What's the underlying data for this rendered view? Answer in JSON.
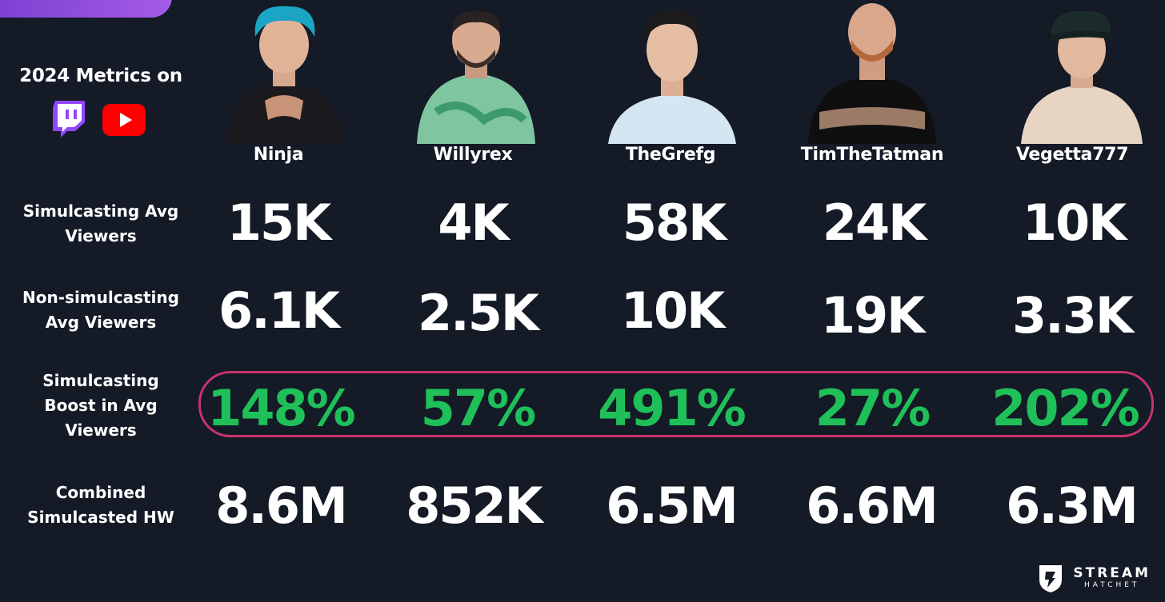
{
  "header": {
    "title": "2024 Metrics on",
    "platforms": [
      {
        "name": "twitch-icon",
        "color": "#9146ff"
      },
      {
        "name": "youtube-icon",
        "color": "#ff0000"
      }
    ]
  },
  "streamers": [
    "Ninja",
    "Willyrex",
    "TheGrefg",
    "TimTheTatman",
    "Vegetta777"
  ],
  "row_labels": {
    "simulcasting_avg": [
      "Simulcasting Avg",
      "Viewers"
    ],
    "non_simulcasting_avg": [
      "Non-simulcasting",
      "Avg Viewers"
    ],
    "boost": [
      "Simulcasting",
      "Boost in Avg",
      "Viewers"
    ],
    "combined_hw": [
      "Combined",
      "Simulcasted HW"
    ]
  },
  "chart_data": {
    "type": "table",
    "columns": [
      "Ninja",
      "Willyrex",
      "TheGrefg",
      "TimTheTatman",
      "Vegetta777"
    ],
    "rows": [
      {
        "label": "Simulcasting Avg Viewers",
        "values": [
          "15K",
          "4K",
          "58K",
          "24K",
          "10K"
        ]
      },
      {
        "label": "Non-simulcasting Avg Viewers",
        "values": [
          "6.1K",
          "2.5K",
          "10K",
          "19K",
          "3.3K"
        ]
      },
      {
        "label": "Simulcasting Boost in Avg Viewers",
        "values": [
          "148%",
          "57%",
          "491%",
          "27%",
          "202%"
        ]
      },
      {
        "label": "Combined Simulcasted HW",
        "values": [
          "8.6M",
          "852K",
          "6.5M",
          "6.6M",
          "6.3M"
        ]
      }
    ]
  },
  "colors": {
    "background": "#141a26",
    "boost_text": "#1fbf59",
    "highlight_border": "#c8336d",
    "accent_tab": "#8b4ddd"
  },
  "brand": {
    "main": "STREAM",
    "sub": "HATCHET"
  }
}
